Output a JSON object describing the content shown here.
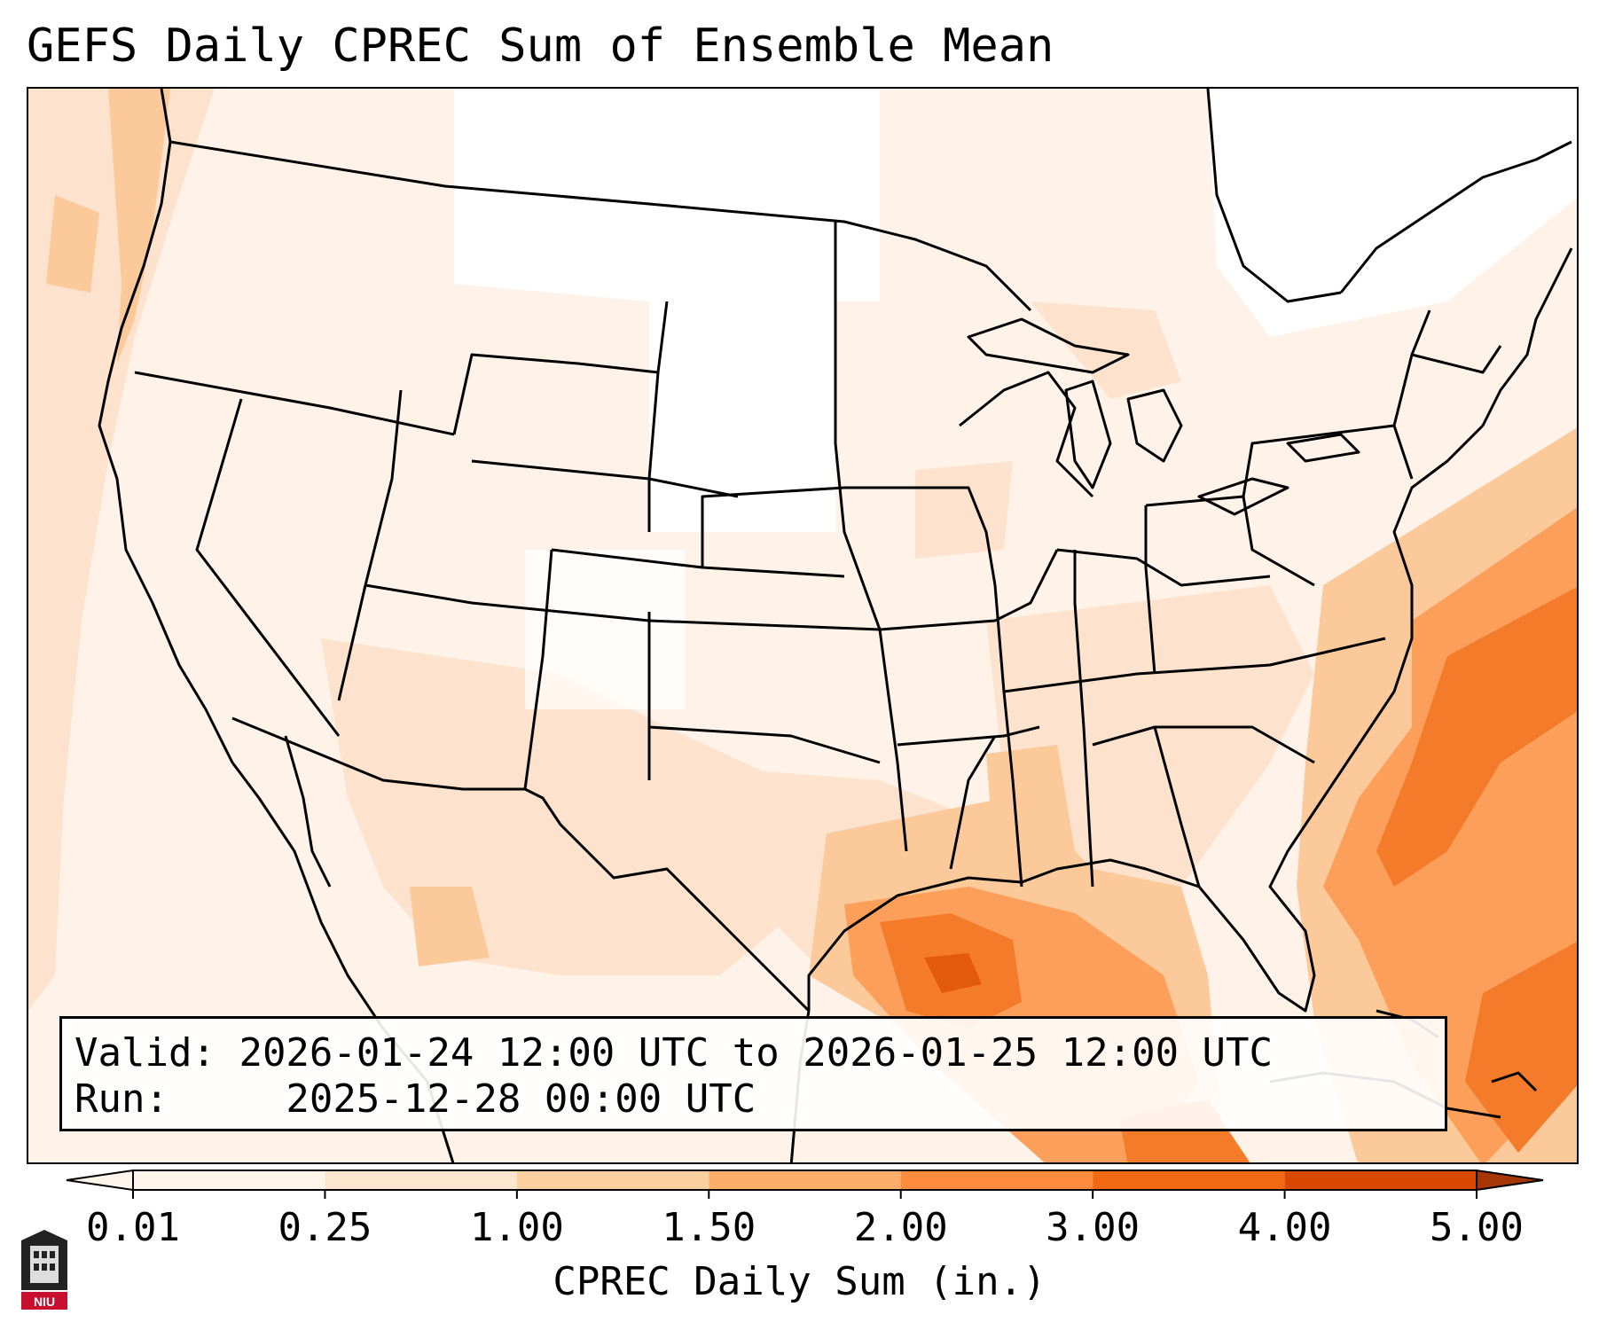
{
  "title": "GEFS Daily CPREC Sum of Ensemble Mean",
  "info": {
    "valid_label": "Valid:",
    "valid_value": "2026-01-24 12:00 UTC to 2026-01-25 12:00 UTC",
    "run_label": "Run:",
    "run_value": "2025-12-28 00:00 UTC"
  },
  "colorbar": {
    "label": "CPREC Daily Sum (in.)",
    "ticks": [
      "0.01",
      "0.25",
      "1.00",
      "1.50",
      "2.00",
      "3.00",
      "4.00",
      "5.00"
    ],
    "colors": [
      "#fff5eb",
      "#fee6ce",
      "#fdd0a2",
      "#fdae6b",
      "#fd8d3c",
      "#f16913",
      "#d94801",
      "#a63603"
    ],
    "extend": "both"
  },
  "logo": {
    "text": "NIU"
  },
  "map": {
    "region": "Continental United States",
    "colors": {
      "border": "#000000",
      "low": "#fff3e9",
      "light": "#fde3cd",
      "medium": "#fcc99a",
      "high": "#fb9f5b",
      "heavy": "#f37b2a",
      "extreme": "#e35a0e"
    }
  }
}
